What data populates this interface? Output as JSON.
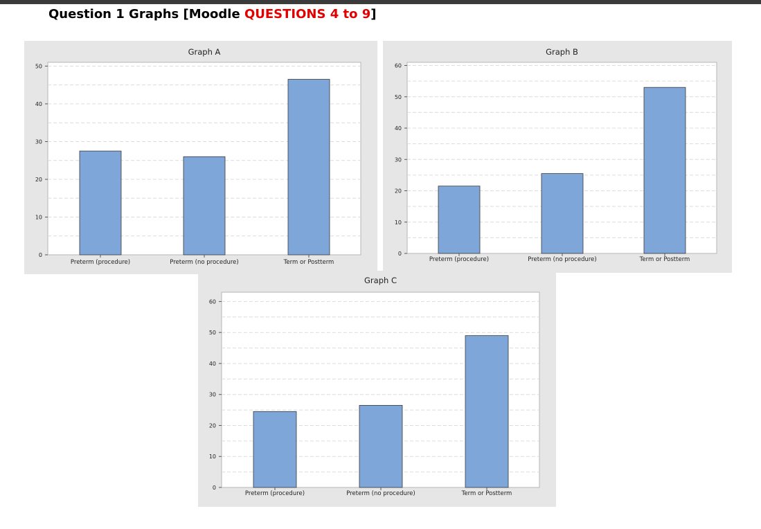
{
  "heading": {
    "prefix": "Question 1  Graphs [Moodle ",
    "highlight": "QUESTIONS 4 to 9",
    "suffix": "]",
    "highlight_color": "#e00000"
  },
  "colors": {
    "bar_fill": "#7ea6d9",
    "bar_stroke": "#3a3a3a",
    "panel_bg": "#e6e6e6",
    "plot_bg": "#ffffff",
    "grid": "#dcdcdc"
  },
  "chart_data": [
    {
      "type": "bar",
      "title": "Graph A",
      "xlabel": "",
      "ylabel": "",
      "categories": [
        "Preterm (procedure)",
        "Preterm (no procedure)",
        "Term or Postterm"
      ],
      "values": [
        27.5,
        26.0,
        46.5
      ],
      "ylim": [
        0,
        51
      ],
      "yticks": [
        0,
        10,
        20,
        30,
        40,
        50
      ],
      "grid": true
    },
    {
      "type": "bar",
      "title": "Graph B",
      "xlabel": "",
      "ylabel": "",
      "categories": [
        "Preterm (procedure)",
        "Preterm (no procedure)",
        "Term or Postterm"
      ],
      "values": [
        21.5,
        25.5,
        53.0
      ],
      "ylim": [
        0,
        61
      ],
      "yticks": [
        0,
        10,
        20,
        30,
        40,
        50,
        60
      ],
      "grid": true
    },
    {
      "type": "bar",
      "title": "Graph C",
      "xlabel": "",
      "ylabel": "",
      "categories": [
        "Preterm (procedure)",
        "Preterm (no procedure)",
        "Term or Postterm"
      ],
      "values": [
        24.5,
        26.5,
        49.0
      ],
      "ylim": [
        0,
        63
      ],
      "yticks": [
        0,
        10,
        20,
        30,
        40,
        50,
        60
      ],
      "grid": true
    }
  ]
}
